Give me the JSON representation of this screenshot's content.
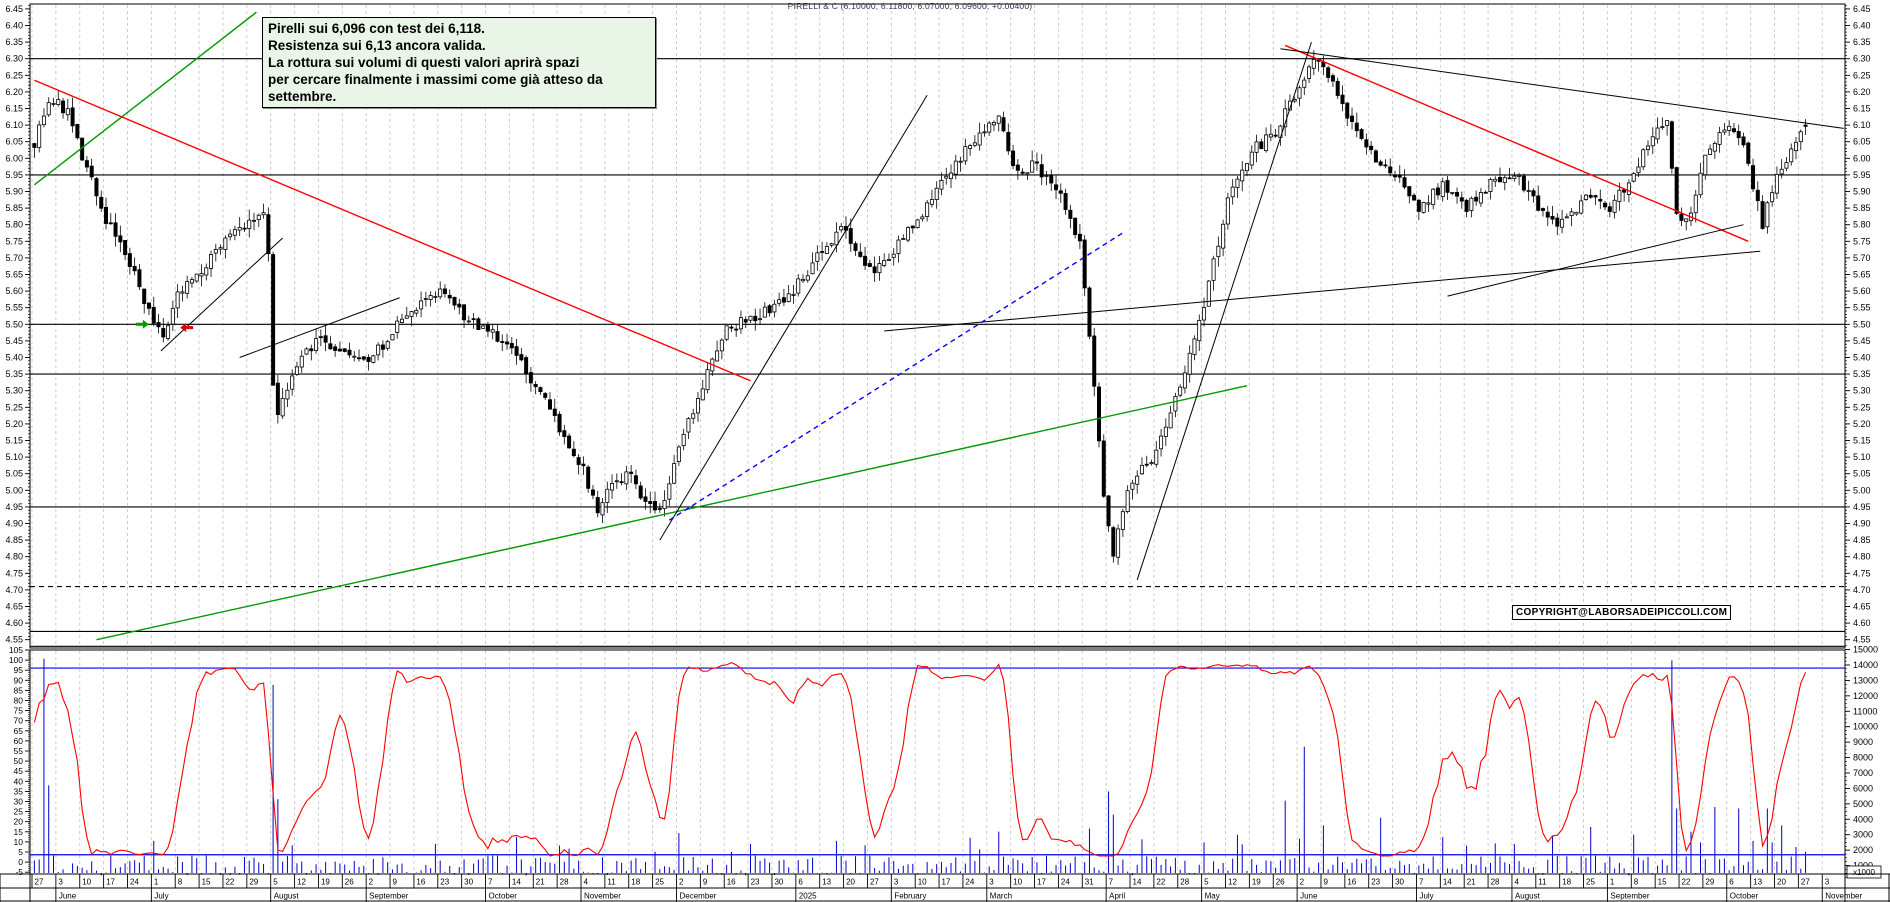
{
  "title": "PIRELLI & C (6.10000, 6.11800, 6.07000, 6.09600, +0.00400)",
  "annotation": {
    "lines": [
      "Pirelli sui 6,096 con test dei 6,118.",
      "Resistenza sui 6,13  ancora valida.",
      "La rottura sui volumi di questi valori aprirà spazi",
      "per cercare finalmente i massimi come già atteso da",
      "settembre."
    ],
    "background": "#e9f5e6"
  },
  "copyright": "COPYRIGHT@LABORSADEIPICCOLI.COM",
  "colors": {
    "grid": "#c8c8c8",
    "candle": "#000000",
    "oscillator": "#ff0000",
    "volume_bars": "#0000cc",
    "blue_level_lines": "#0000ee",
    "trend_red": "#ff0000",
    "trend_green": "#009900",
    "trend_black": "#000000",
    "trend_blue_dashed": "#0000ff"
  },
  "chart_data": {
    "type": "candlestick",
    "price_panel": {
      "ylim": [
        4.53,
        6.47
      ],
      "tick_step": 0.05,
      "tick_labels": [
        "6.45",
        "6.40",
        "6.35",
        "6.30",
        "6.25",
        "6.20",
        "6.15",
        "6.10",
        "6.05",
        "6.00",
        "5.95",
        "5.90",
        "5.85",
        "5.80",
        "5.75",
        "5.70",
        "5.65",
        "5.60",
        "5.55",
        "5.50",
        "5.45",
        "5.40",
        "5.35",
        "5.30",
        "5.25",
        "5.20",
        "5.15",
        "5.10",
        "5.05",
        "5.00",
        "4.95",
        "4.90",
        "4.85",
        "4.80",
        "4.75",
        "4.70",
        "4.65",
        "4.60",
        "4.55"
      ],
      "hlines": [
        6.3,
        5.95,
        5.5,
        5.35,
        4.95,
        4.575,
        4.53
      ],
      "dashed_hlines": [
        4.71
      ],
      "trendlines": [
        {
          "d1": 0,
          "p1": 5.92,
          "d2": 46.5,
          "p2": 6.44,
          "color": "green"
        },
        {
          "d1": 13,
          "p1": 4.55,
          "d2": 254,
          "p2": 5.315,
          "color": "green"
        },
        {
          "d1": 0,
          "p1": 6.235,
          "d2": 150,
          "p2": 5.33,
          "color": "red"
        },
        {
          "d1": 262,
          "p1": 6.34,
          "d2": 359,
          "p2": 5.75,
          "color": "red"
        },
        {
          "d1": 26.5,
          "p1": 5.42,
          "d2": 52,
          "p2": 5.76,
          "color": "black"
        },
        {
          "d1": 43,
          "p1": 5.4,
          "d2": 76.5,
          "p2": 5.58,
          "color": "black"
        },
        {
          "d1": 131,
          "p1": 4.85,
          "d2": 187,
          "p2": 6.19,
          "color": "black"
        },
        {
          "d1": 231,
          "p1": 4.73,
          "d2": 267.5,
          "p2": 6.35,
          "color": "black"
        },
        {
          "d1": 261,
          "p1": 6.33,
          "d2": 379,
          "p2": 6.09,
          "color": "black"
        },
        {
          "d1": 178,
          "p1": 5.48,
          "d2": 361.5,
          "p2": 5.72,
          "color": "black"
        },
        {
          "d1": 296,
          "p1": 5.585,
          "d2": 358,
          "p2": 5.8,
          "color": "black"
        },
        {
          "d1": 133,
          "p1": 4.91,
          "d2": 228.5,
          "p2": 5.78,
          "color": "blue",
          "dashed": true
        }
      ],
      "arrows": [
        {
          "d": 22.5,
          "p": 5.5,
          "dir": "right",
          "color": "#009900"
        },
        {
          "d": 32,
          "p": 5.49,
          "dir": "left",
          "color": "#dd0000"
        }
      ],
      "weekly_close_path": [
        [
          0,
          6.05
        ],
        [
          3,
          6.18
        ],
        [
          7,
          6.14
        ],
        [
          10,
          6.0
        ],
        [
          15,
          5.82
        ],
        [
          20,
          5.68
        ],
        [
          25,
          5.5
        ],
        [
          27,
          5.45
        ],
        [
          30,
          5.58
        ],
        [
          35,
          5.67
        ],
        [
          40,
          5.75
        ],
        [
          45,
          5.8
        ],
        [
          48,
          5.84
        ],
        [
          49,
          5.72
        ],
        [
          50,
          5.3
        ],
        [
          51,
          5.22
        ],
        [
          55,
          5.38
        ],
        [
          60,
          5.46
        ],
        [
          65,
          5.42
        ],
        [
          70,
          5.38
        ],
        [
          75,
          5.48
        ],
        [
          80,
          5.55
        ],
        [
          85,
          5.6
        ],
        [
          90,
          5.52
        ],
        [
          95,
          5.48
        ],
        [
          100,
          5.42
        ],
        [
          105,
          5.32
        ],
        [
          110,
          5.18
        ],
        [
          115,
          5.06
        ],
        [
          118,
          4.95
        ],
        [
          120,
          4.99
        ],
        [
          125,
          5.06
        ],
        [
          128,
          4.96
        ],
        [
          131,
          4.93
        ],
        [
          135,
          5.12
        ],
        [
          140,
          5.32
        ],
        [
          145,
          5.48
        ],
        [
          150,
          5.52
        ],
        [
          155,
          5.55
        ],
        [
          160,
          5.62
        ],
        [
          165,
          5.72
        ],
        [
          169,
          5.8
        ],
        [
          173,
          5.72
        ],
        [
          175,
          5.66
        ],
        [
          180,
          5.72
        ],
        [
          185,
          5.82
        ],
        [
          190,
          5.92
        ],
        [
          195,
          6.02
        ],
        [
          200,
          6.1
        ],
        [
          202,
          6.12
        ],
        [
          205,
          5.96
        ],
        [
          210,
          5.98
        ],
        [
          215,
          5.88
        ],
        [
          219,
          5.75
        ],
        [
          221,
          5.45
        ],
        [
          224,
          5.0
        ],
        [
          226,
          4.8
        ],
        [
          228,
          4.95
        ],
        [
          230,
          5.02
        ],
        [
          235,
          5.12
        ],
        [
          240,
          5.32
        ],
        [
          245,
          5.55
        ],
        [
          250,
          5.88
        ],
        [
          255,
          6.02
        ],
        [
          260,
          6.08
        ],
        [
          265,
          6.22
        ],
        [
          268,
          6.3
        ],
        [
          271,
          6.25
        ],
        [
          275,
          6.12
        ],
        [
          280,
          6.02
        ],
        [
          285,
          5.95
        ],
        [
          290,
          5.85
        ],
        [
          295,
          5.92
        ],
        [
          300,
          5.85
        ],
        [
          305,
          5.92
        ],
        [
          310,
          5.96
        ],
        [
          315,
          5.85
        ],
        [
          320,
          5.8
        ],
        [
          325,
          5.88
        ],
        [
          330,
          5.85
        ],
        [
          335,
          5.95
        ],
        [
          340,
          6.1
        ],
        [
          342,
          6.12
        ],
        [
          344,
          5.85
        ],
        [
          346,
          5.8
        ],
        [
          350,
          6.0
        ],
        [
          355,
          6.1
        ],
        [
          358,
          6.05
        ],
        [
          360,
          5.92
        ],
        [
          362,
          5.8
        ],
        [
          365,
          5.95
        ],
        [
          368,
          6.02
        ],
        [
          371,
          6.1
        ]
      ],
      "last_candle": {
        "open": 6.1,
        "high": 6.118,
        "low": 6.07,
        "close": 6.096,
        "change": "+0.00400"
      }
    },
    "lower_panel": {
      "oscillator": {
        "range": [
          -5,
          105
        ],
        "tick_step": 5,
        "tick_labels": [
          "105",
          "100",
          "95",
          "90",
          "85",
          "80",
          "75",
          "70",
          "65",
          "60",
          "55",
          "50",
          "45",
          "40",
          "35",
          "30",
          "25",
          "20",
          "15",
          "10",
          "5",
          "0",
          "-5"
        ]
      },
      "volume": {
        "unit": "x1000",
        "tick_labels": [
          "15000",
          "14000",
          "13000",
          "12000",
          "11000",
          "10000",
          "9000",
          "8000",
          "7000",
          "6000",
          "5000",
          "4000",
          "3000",
          "2000",
          "1000"
        ],
        "blue_hlines": [
          13800,
          1700
        ],
        "spikes": [
          [
            2,
            14400
          ],
          [
            3,
            6200
          ],
          [
            25,
            2600
          ],
          [
            50,
            12700
          ],
          [
            51,
            5300
          ],
          [
            84,
            2400
          ],
          [
            110,
            2300
          ],
          [
            135,
            3100
          ],
          [
            150,
            2400
          ],
          [
            168,
            2600
          ],
          [
            196,
            2800
          ],
          [
            202,
            3200
          ],
          [
            221,
            3400
          ],
          [
            225,
            5800
          ],
          [
            226,
            4300
          ],
          [
            232,
            2700
          ],
          [
            245,
            2500
          ],
          [
            252,
            3000
          ],
          [
            262,
            5200
          ],
          [
            266,
            8700
          ],
          [
            270,
            3600
          ],
          [
            282,
            4100
          ],
          [
            300,
            2300
          ],
          [
            310,
            2400
          ],
          [
            318,
            2900
          ],
          [
            326,
            3500
          ],
          [
            335,
            3000
          ],
          [
            343,
            14300
          ],
          [
            344,
            4700
          ],
          [
            347,
            3200
          ],
          [
            349,
            2500
          ],
          [
            352,
            4800
          ],
          [
            357,
            4700
          ],
          [
            360,
            2600
          ],
          [
            363,
            4700
          ],
          [
            364,
            2500
          ],
          [
            366,
            3600
          ],
          [
            369,
            2200
          ],
          [
            371,
            1900
          ]
        ]
      }
    },
    "x_axis": {
      "days_per_week": 5,
      "total_days": 372,
      "week_labels": [
        "27",
        "3",
        "10",
        "17",
        "24",
        "1",
        "8",
        "15",
        "22",
        "29",
        "5",
        "12",
        "19",
        "26",
        "2",
        "9",
        "16",
        "23",
        "30",
        "7",
        "14",
        "21",
        "28",
        "4",
        "11",
        "18",
        "25",
        "2",
        "9",
        "16",
        "23",
        "30",
        "6",
        "13",
        "20",
        "27",
        "3",
        "10",
        "17",
        "24",
        "3",
        "10",
        "17",
        "24",
        "31",
        "7",
        "14",
        "22",
        "28",
        "5",
        "12",
        "19",
        "26",
        "2",
        "9",
        "16",
        "23",
        "30",
        "7",
        "14",
        "21",
        "28",
        "4",
        "11",
        "18",
        "25",
        "1",
        "8",
        "15",
        "22",
        "29",
        "6",
        "13",
        "20",
        "27",
        "3"
      ],
      "months": [
        {
          "label": "June",
          "week": 1
        },
        {
          "label": "July",
          "week": 5
        },
        {
          "label": "August",
          "week": 10
        },
        {
          "label": "September",
          "week": 14
        },
        {
          "label": "October",
          "week": 19
        },
        {
          "label": "November",
          "week": 23
        },
        {
          "label": "December",
          "week": 27
        },
        {
          "label": "2025",
          "week": 32
        },
        {
          "label": "February",
          "week": 36
        },
        {
          "label": "March",
          "week": 40
        },
        {
          "label": "April",
          "week": 45
        },
        {
          "label": "May",
          "week": 49
        },
        {
          "label": "June",
          "week": 53
        },
        {
          "label": "July",
          "week": 58
        },
        {
          "label": "August",
          "week": 62
        },
        {
          "label": "September",
          "week": 66
        },
        {
          "label": "October",
          "week": 71
        },
        {
          "label": "November",
          "week": 75
        }
      ]
    }
  }
}
